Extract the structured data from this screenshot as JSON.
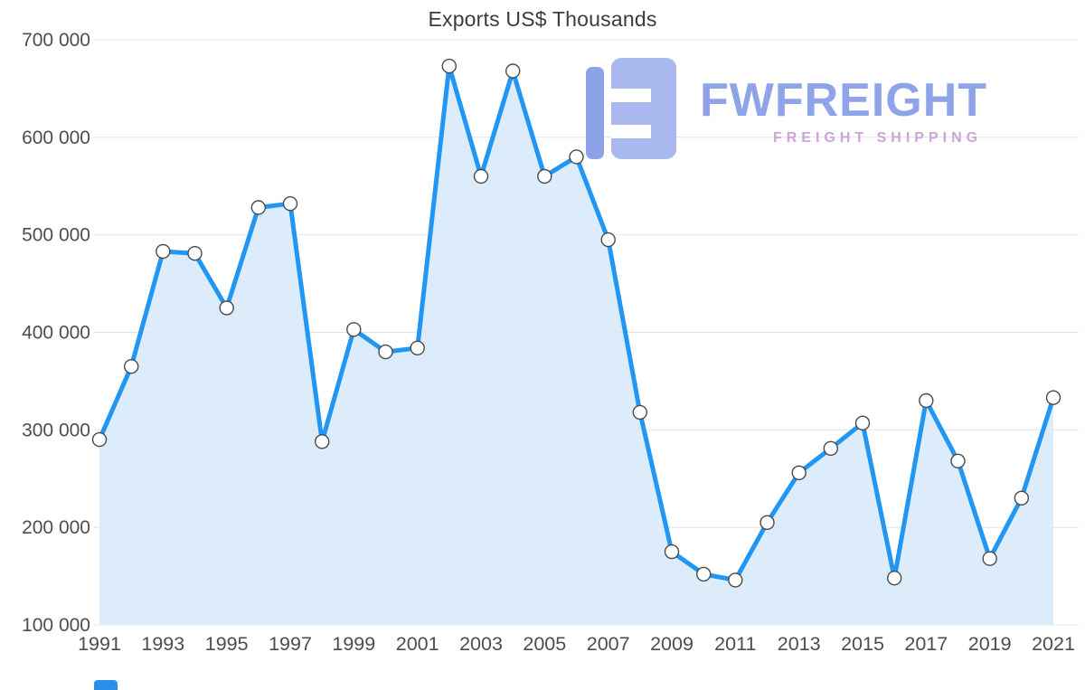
{
  "title": "Exports US$ Thousands",
  "logo": {
    "name": "FWFREIGHT",
    "tagline": "FREIGHT SHIPPING",
    "wordmark_color": "#8fa3e9",
    "tagline_color": "#cda4d8",
    "mark_color_bar": "#8ea2e8",
    "mark_color_square": "#a9b8ee"
  },
  "chart_data": {
    "type": "area",
    "title": "Exports US$ Thousands",
    "xlabel": "",
    "ylabel": "",
    "x": [
      1991,
      1992,
      1993,
      1994,
      1995,
      1996,
      1997,
      1998,
      1999,
      2000,
      2001,
      2002,
      2003,
      2004,
      2005,
      2006,
      2007,
      2008,
      2009,
      2010,
      2011,
      2012,
      2013,
      2014,
      2015,
      2016,
      2017,
      2018,
      2019,
      2020,
      2021
    ],
    "values": [
      290000,
      365000,
      483000,
      481000,
      425000,
      528000,
      532000,
      288000,
      403000,
      380000,
      384000,
      673000,
      560000,
      668000,
      560000,
      580000,
      495000,
      318000,
      175000,
      152000,
      146000,
      205000,
      256000,
      281000,
      307000,
      148000,
      330000,
      268000,
      168000,
      230000,
      333000
    ],
    "ylim": [
      100000,
      700000
    ],
    "ytick_values": [
      100000,
      200000,
      300000,
      400000,
      500000,
      600000,
      700000
    ],
    "ytick_labels": [
      "100 000",
      "200 000",
      "300 000",
      "400 000",
      "500 000",
      "600 000",
      "700 000"
    ],
    "xtick_labels": [
      "1991",
      "1993",
      "1995",
      "1997",
      "1999",
      "2001",
      "2003",
      "2005",
      "2007",
      "2009",
      "2011",
      "2013",
      "2015",
      "2017",
      "2019",
      "2021"
    ],
    "grid": true,
    "legend": "none",
    "line_color": "#2196f3",
    "fill_color": "#dcecfa",
    "grid_color": "#e4e4e4",
    "axis_text_color": "#4d4d4d",
    "marker": "circle-white"
  }
}
